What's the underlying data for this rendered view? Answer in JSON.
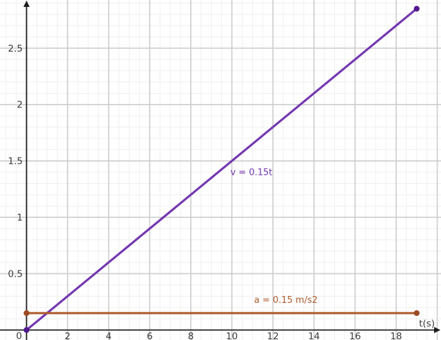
{
  "chart_data": {
    "type": "line",
    "title": "",
    "xlabel": "t(s)",
    "ylabel": "",
    "origin_label": "0",
    "x_range": [
      -1.29,
      20.18
    ],
    "y_range": [
      -0.09,
      2.93
    ],
    "x_ticks": [
      2,
      4,
      6,
      8,
      10,
      12,
      14,
      16,
      18
    ],
    "y_ticks": [
      0.5,
      1,
      1.5,
      2,
      2.5
    ],
    "grid": {
      "shown": true,
      "x_major_step": 2,
      "x_minor_step": 0.5,
      "y_major_step": 0.5,
      "y_minor_step": 0.1,
      "major_color": "#cccccc",
      "minor_color": "#efefef"
    },
    "axis_color": "#1b1b1b",
    "tick_label_color": "#3a3a3a",
    "background_color": "#ffffff",
    "legend": "none",
    "series": [
      {
        "id": "v",
        "label": "v = 0.15t",
        "color": "#7438b0",
        "point_color": "#52188c",
        "points": [
          [
            0,
            0
          ],
          [
            19,
            2.85
          ]
        ],
        "label_anchor": [
          10.95,
          1.4
        ],
        "show_endpoints": true
      },
      {
        "id": "a",
        "label": "a = 0.15 m/s2",
        "color": "#ae5a2c",
        "point_color": "#9c4a22",
        "points": [
          [
            0,
            0.15
          ],
          [
            19,
            0.15
          ]
        ],
        "label_anchor": [
          12.63,
          0.27
        ],
        "show_endpoints": true
      }
    ]
  }
}
